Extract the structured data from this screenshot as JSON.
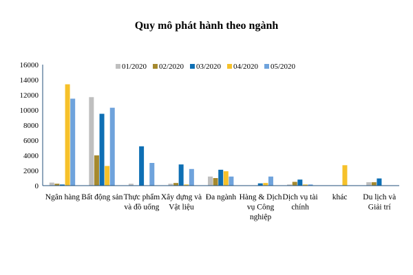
{
  "chart_data": {
    "type": "bar",
    "title": "Quy mô phát hành theo ngành",
    "xlabel": "",
    "ylabel": "",
    "ylim": [
      0,
      16000
    ],
    "yticks": [
      "0",
      "2000",
      "4000",
      "6000",
      "8000",
      "10000",
      "12000",
      "14000",
      "16000"
    ],
    "grid": false,
    "legend_position": "top",
    "categories": [
      [
        "Ngân hàng"
      ],
      [
        "Bất động sản"
      ],
      [
        "Thực phẩm",
        "và đồ uống"
      ],
      [
        "Xây dựng và",
        "Vật liệu"
      ],
      [
        "Đa ngành"
      ],
      [
        "Hàng & Dịch",
        "vụ Công",
        "nghiệp"
      ],
      [
        "Dịch vụ tài",
        "chính"
      ],
      [
        "khác"
      ],
      [
        "Du lịch và",
        "Giải trí"
      ]
    ],
    "series": [
      {
        "name": "01/2020",
        "color": "#BFBFBF",
        "values": [
          400,
          11700,
          250,
          250,
          1200,
          0,
          150,
          0,
          450
        ]
      },
      {
        "name": "02/2020",
        "color": "#A5892E",
        "values": [
          250,
          4000,
          0,
          350,
          1000,
          0,
          500,
          0,
          450
        ]
      },
      {
        "name": "03/2020",
        "color": "#0E6FB4",
        "values": [
          150,
          9500,
          5200,
          2800,
          2100,
          300,
          800,
          0,
          950
        ]
      },
      {
        "name": "04/2020",
        "color": "#F6C12A",
        "values": [
          13400,
          2600,
          0,
          150,
          1900,
          350,
          150,
          2700,
          0
        ]
      },
      {
        "name": "05/2020",
        "color": "#6FA3DC",
        "values": [
          11500,
          10300,
          3000,
          2200,
          1200,
          1200,
          150,
          0,
          0
        ]
      }
    ]
  }
}
